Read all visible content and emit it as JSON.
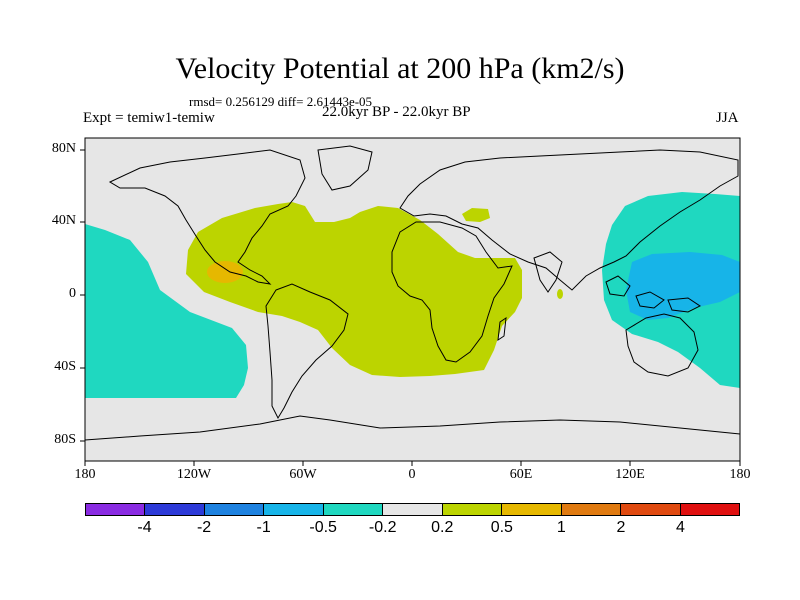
{
  "title": "Velocity Potential at 200 hPa (km2/s)",
  "stats": "rmsd= 0.256129 diff= 2.61443e-05",
  "left_label": "Expt = temiw1-temiw",
  "center_label": "22.0kyr BP - 22.0kyr BP",
  "right_label": "JJA",
  "lat_labels": [
    "80N",
    "40N",
    "0",
    "40S",
    "80S"
  ],
  "lon_labels": [
    "180",
    "120W",
    "60W",
    "0",
    "60E",
    "120E",
    "180"
  ],
  "colorbar": {
    "labels": [
      "-4",
      "-2",
      "-1",
      "-0.5",
      "-0.2",
      "0.2",
      "0.5",
      "1",
      "2",
      "4"
    ],
    "colors": [
      "#8a2be2",
      "#2d3ad8",
      "#1e82e0",
      "#17b4e8",
      "#1fd8c0",
      "#e6e6e6",
      "#bcd400",
      "#e6b800",
      "#e07a10",
      "#e04a10",
      "#e01010"
    ]
  },
  "map_colors": {
    "ocean_fill": "#e6e6e6",
    "neg_weak": "#1fd8c0",
    "neg_mod": "#17b4e8",
    "pos_weak": "#bcd400",
    "pos_mod": "#e6b800",
    "coast": "#000000"
  }
}
